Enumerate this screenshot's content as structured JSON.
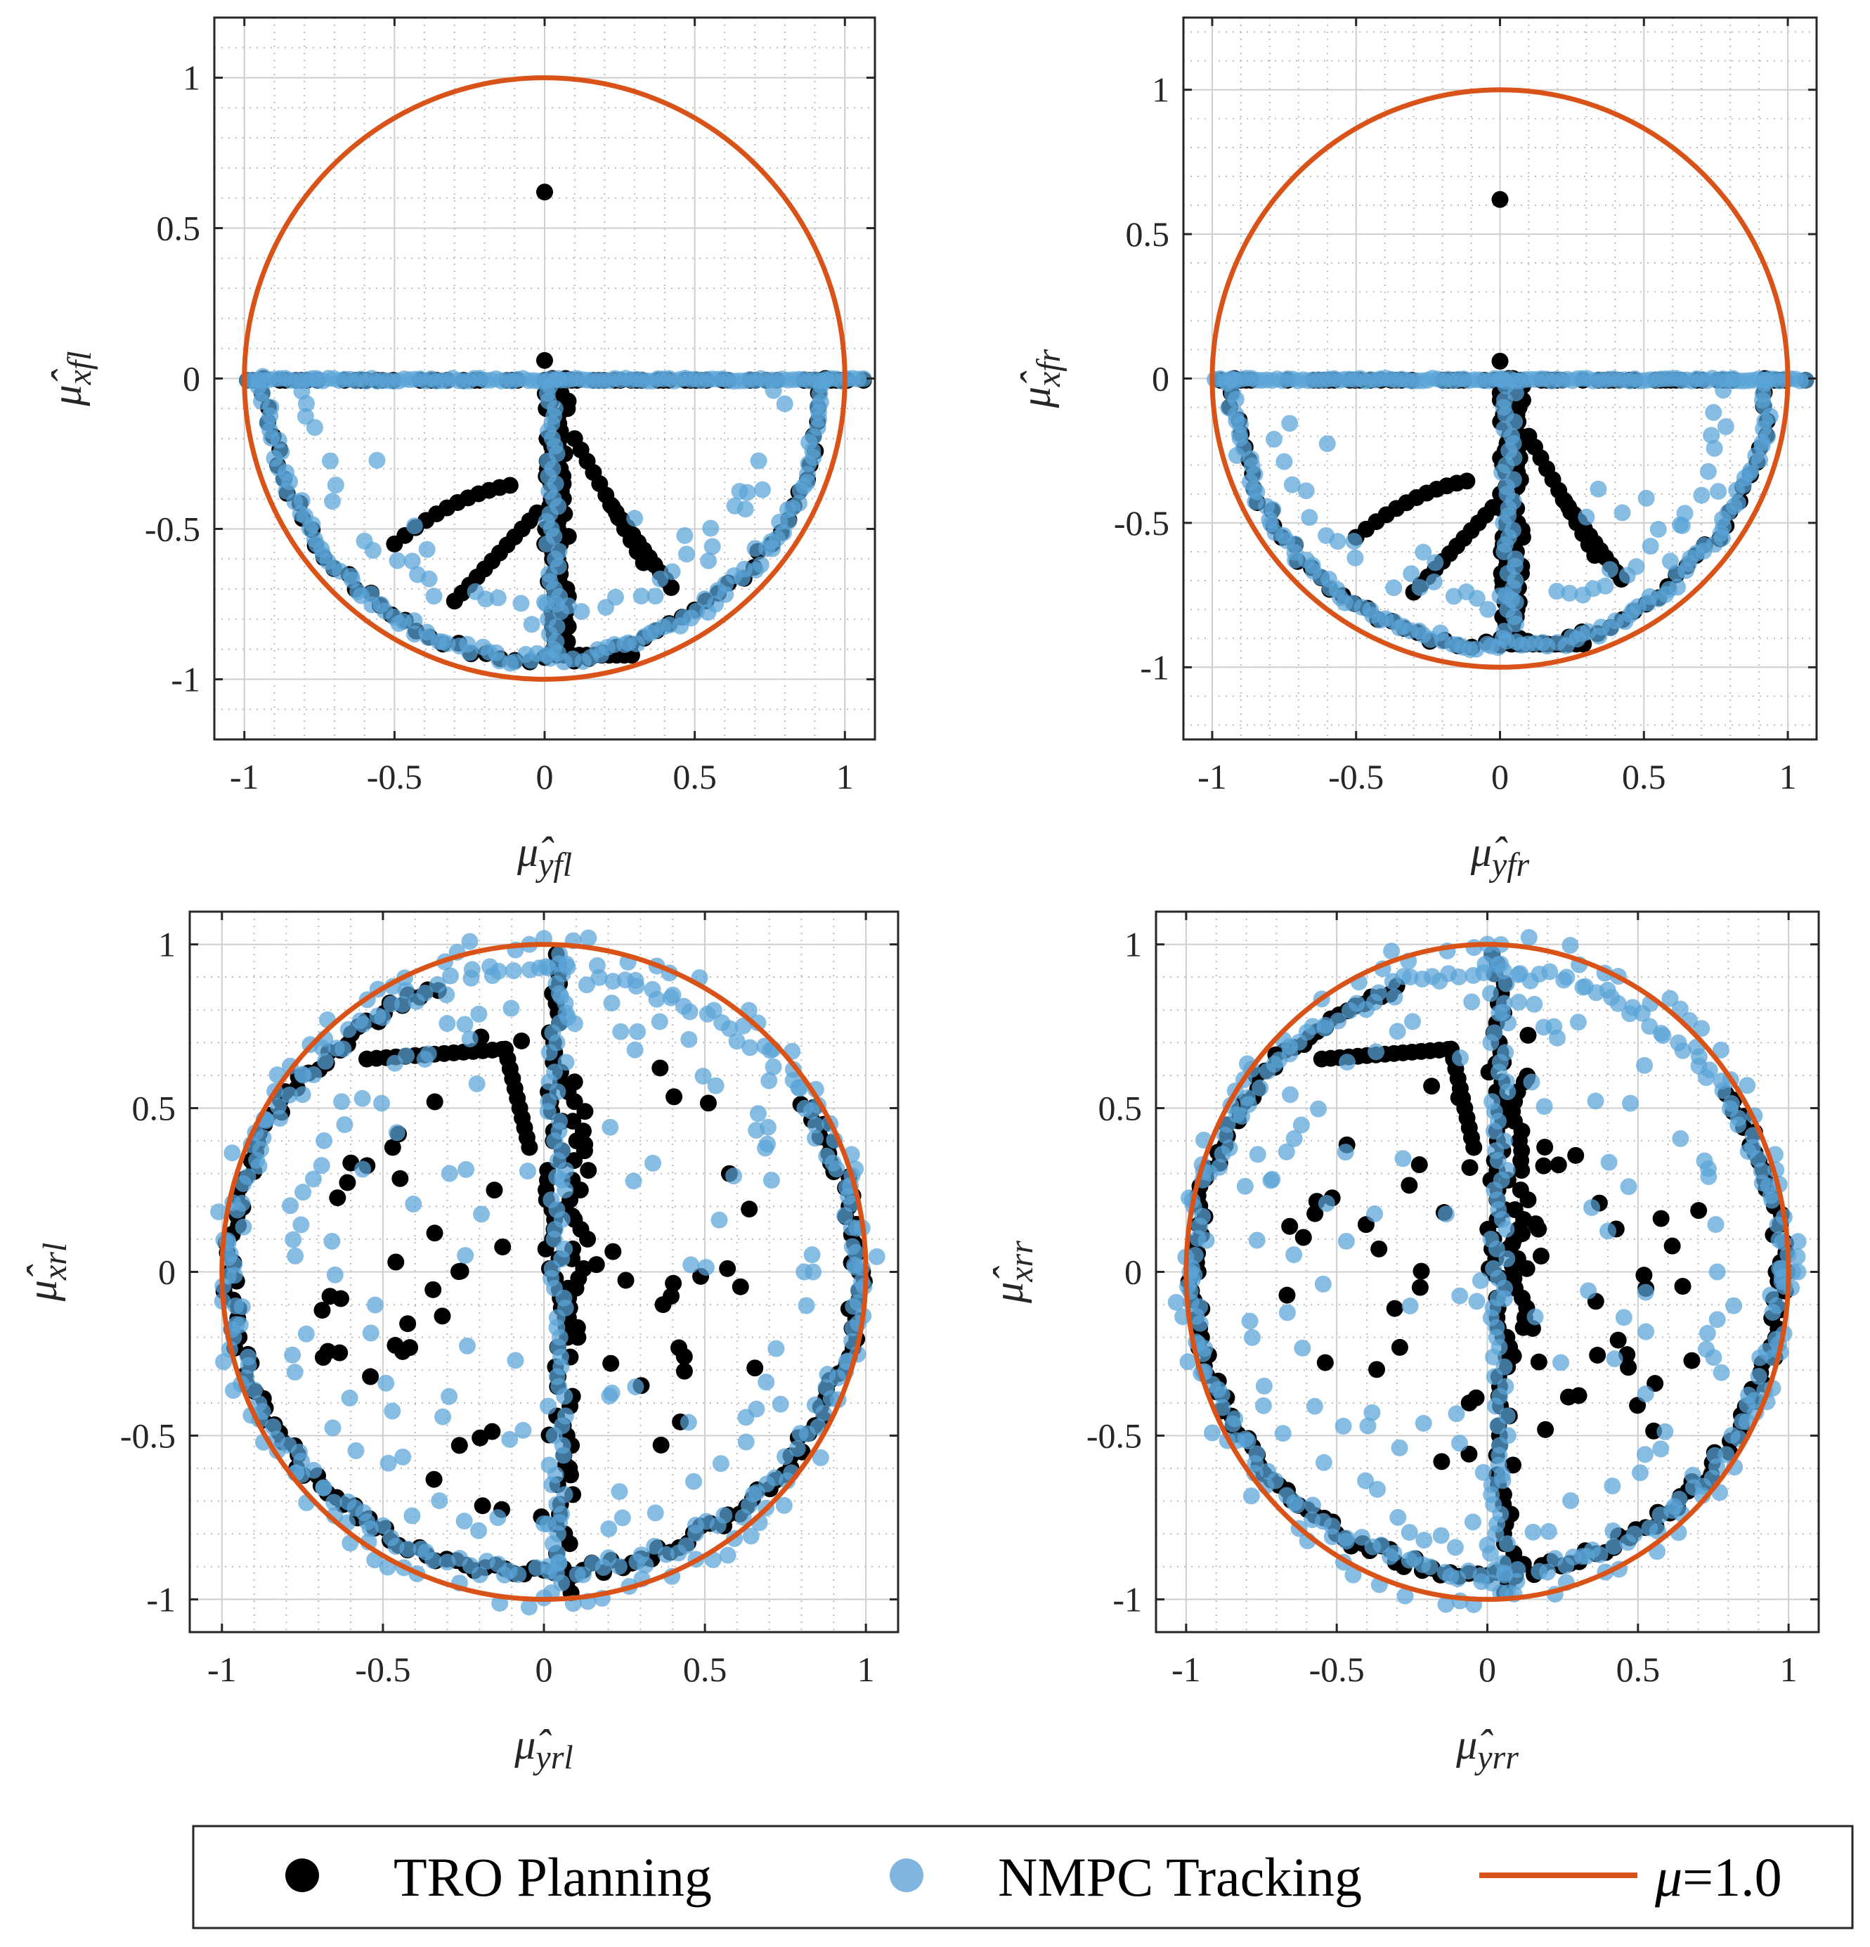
{
  "colors": {
    "planning": "#000000",
    "tracking": "#5aa3d8",
    "circle": "#d95319",
    "axis": "#262626",
    "grid_major": "#cfcfcf",
    "grid_minor": "#bdbdbd"
  },
  "legend": {
    "planning_label": "TRO Planning",
    "tracking_label": "NMPC Tracking",
    "circle_label_symbol": "μ",
    "circle_label_value": "=1.0"
  },
  "chart_data": [
    {
      "type": "scatter",
      "id": "fl",
      "ylabel_base": "μ̂",
      "ylabel_sub": "xfl",
      "xlabel_base": "μ̂",
      "xlabel_sub": "yfl",
      "xlim": [
        -1.1,
        1.1
      ],
      "ylim": [
        -1.2,
        1.2
      ],
      "xticks": [
        -1,
        -0.5,
        0,
        0.5,
        1
      ],
      "yticks": [
        -1,
        -0.5,
        0,
        0.5,
        1
      ],
      "xtick_labels": [
        "-1",
        "-0.5",
        "0",
        "0.5",
        "1"
      ],
      "ytick_labels": [
        "-1",
        "-0.5",
        "0",
        "0.5",
        "1"
      ],
      "grid": true,
      "friction_circle_radius": 1.0,
      "isolated_points": [
        [
          0,
          0.62
        ],
        [
          0,
          0.06
        ]
      ],
      "scatter_pattern": "front"
    },
    {
      "type": "scatter",
      "id": "fr",
      "ylabel_base": "μ̂",
      "ylabel_sub": "xfr",
      "xlabel_base": "μ̂",
      "xlabel_sub": "yfr",
      "xlim": [
        -1.1,
        1.1
      ],
      "ylim": [
        -1.25,
        1.25
      ],
      "xticks": [
        -1,
        -0.5,
        0,
        0.5,
        1
      ],
      "yticks": [
        -1,
        -0.5,
        0,
        0.5,
        1
      ],
      "xtick_labels": [
        "-1",
        "-0.5",
        "0",
        "0.5",
        "1"
      ],
      "ytick_labels": [
        "-1",
        "-0.5",
        "0",
        "0.5",
        "1"
      ],
      "grid": true,
      "friction_circle_radius": 1.0,
      "isolated_points": [
        [
          0,
          0.62
        ],
        [
          0,
          0.06
        ]
      ],
      "scatter_pattern": "front"
    },
    {
      "type": "scatter",
      "id": "rl",
      "ylabel_base": "μ̂",
      "ylabel_sub": "xrl",
      "xlabel_base": "μ̂",
      "xlabel_sub": "yrl",
      "xlim": [
        -1.1,
        1.1
      ],
      "ylim": [
        -1.1,
        1.1
      ],
      "xticks": [
        -1,
        -0.5,
        0,
        0.5,
        1
      ],
      "yticks": [
        -1,
        -0.5,
        0,
        0.5,
        1
      ],
      "xtick_labels": [
        "-1",
        "-0.5",
        "0",
        "0.5",
        "1"
      ],
      "ytick_labels": [
        "-1",
        "-0.5",
        "0",
        "0.5",
        "1"
      ],
      "grid": true,
      "friction_circle_radius": 1.0,
      "isolated_points": [
        [
          -0.46,
          0.03
        ],
        [
          0.57,
          0.01
        ],
        [
          0.37,
          -0.1
        ]
      ],
      "scatter_pattern": "rear"
    },
    {
      "type": "scatter",
      "id": "rr",
      "ylabel_base": "μ̂",
      "ylabel_sub": "xrr",
      "xlabel_base": "μ̂",
      "xlabel_sub": "yrr",
      "xlim": [
        -1.1,
        1.1
      ],
      "ylim": [
        -1.1,
        1.1
      ],
      "xticks": [
        -1,
        -0.5,
        0,
        0.5,
        1
      ],
      "yticks": [
        -1,
        -0.5,
        0,
        0.5,
        1
      ],
      "xtick_labels": [
        "-1",
        "-0.5",
        "0",
        "0.5",
        "1"
      ],
      "ytick_labels": [
        "-1",
        "-0.5",
        "0",
        "0.5",
        "1"
      ],
      "grid": true,
      "friction_circle_radius": 1.0,
      "isolated_points": [
        [
          -0.36,
          0.07
        ],
        [
          0.52,
          -0.01
        ],
        [
          0.36,
          -0.09
        ]
      ],
      "scatter_pattern": "rear"
    }
  ]
}
